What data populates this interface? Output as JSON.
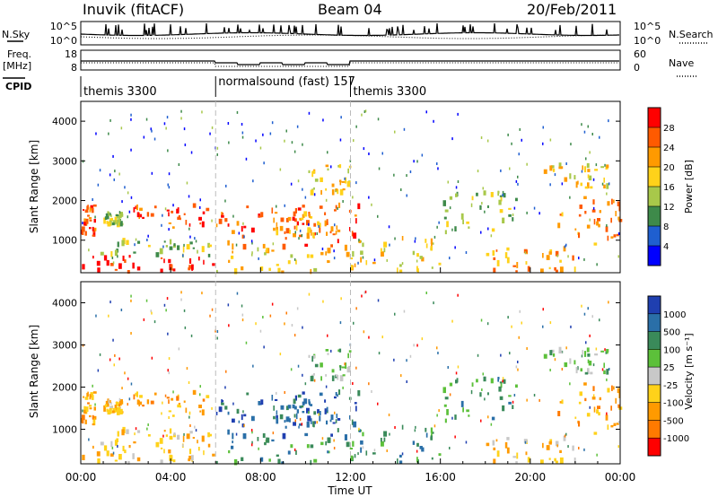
{
  "header": {
    "station": "Inuvik (fitACF)",
    "beam": "Beam 04",
    "date": "20/Feb/2011"
  },
  "nsky_panel": {
    "left_label": "N.Sky",
    "right_label": "N.Search",
    "left_ticks": [
      "10^5",
      "10^0"
    ],
    "right_ticks": [
      "10^5",
      "10^0"
    ]
  },
  "freq_panel": {
    "left_label_1": "Freq.",
    "left_label_2": "[MHz]",
    "right_label": "Nave",
    "left_ticks": [
      "18",
      "8"
    ],
    "right_ticks": [
      "60",
      "0"
    ]
  },
  "cpid": {
    "label": "CPID",
    "segments": [
      {
        "name": "themis 3300",
        "start": 0,
        "end": 6
      },
      {
        "name": "normalsound (fast) 157",
        "start": 6,
        "end": 12
      },
      {
        "name": "themis 3300",
        "start": 12,
        "end": 24
      }
    ]
  },
  "power_panel": {
    "ylabel": "Slant Range [km]",
    "yticks": [
      "1000",
      "2000",
      "3000",
      "4000"
    ],
    "colorbar_label": "Power [dB]",
    "colorbar_ticks": [
      "4",
      "8",
      "12",
      "16",
      "20",
      "24",
      "28"
    ],
    "colors": [
      "#0000ff",
      "#1f5fd0",
      "#3e8a4a",
      "#a8c84a",
      "#ffd21a",
      "#ff9a00",
      "#ff5a00",
      "#ff0000"
    ]
  },
  "velocity_panel": {
    "ylabel": "Slant Range [km]",
    "yticks": [
      "1000",
      "2000",
      "3000",
      "4000"
    ],
    "colorbar_label": "Velocity [m s⁻¹]",
    "colorbar_ticks": [
      "1000",
      "500",
      "100",
      "25",
      "-25",
      "-100",
      "-500",
      "-1000"
    ],
    "colors": [
      "#1f3fb0",
      "#2a6fa8",
      "#3a8a5a",
      "#5cc03a",
      "#c8c8c8",
      "#ffd21a",
      "#ff9a00",
      "#ff7a00",
      "#ff0000"
    ]
  },
  "xaxis": {
    "ticks": [
      "00:00",
      "04:00",
      "08:00",
      "12:00",
      "16:00",
      "20:00",
      "00:00"
    ],
    "label": "Time UT"
  },
  "chart_data": {
    "type": "heatmap",
    "x_range_hours": [
      0,
      24
    ],
    "y_range_km": [
      180,
      4500
    ],
    "mode_change_hours": [
      6,
      12
    ],
    "echo_regions": [
      {
        "t": [
          0.0,
          6.0
        ],
        "r": [
          200,
          600
        ],
        "power_db": 28,
        "velocity": -100
      },
      {
        "t": [
          0.2,
          5.8
        ],
        "r": [
          600,
          1000
        ],
        "power_db": 12,
        "velocity": -100
      },
      {
        "t": [
          0.0,
          0.6
        ],
        "r": [
          1100,
          1900
        ],
        "power_db": 24,
        "velocity": -500
      },
      {
        "t": [
          1.0,
          1.8
        ],
        "r": [
          1400,
          1700
        ],
        "power_db": 12,
        "velocity": -100
      },
      {
        "t": [
          2.2,
          5.8
        ],
        "r": [
          1300,
          1900
        ],
        "power_db": 26,
        "velocity": -500
      },
      {
        "t": [
          6.0,
          12.5
        ],
        "r": [
          800,
          1900
        ],
        "power_db": 24,
        "velocity": 500
      },
      {
        "t": [
          6.0,
          12.0
        ],
        "r": [
          200,
          800
        ],
        "power_db": 16,
        "velocity": 100
      },
      {
        "t": [
          10.0,
          12.0
        ],
        "r": [
          2200,
          2900
        ],
        "power_db": 16,
        "velocity": 25
      },
      {
        "t": [
          8.5,
          11.0
        ],
        "r": [
          1100,
          1700
        ],
        "power_db": 20,
        "velocity": 500
      },
      {
        "t": [
          12.0,
          16.0
        ],
        "r": [
          200,
          1100
        ],
        "power_db": 16,
        "velocity": 100
      },
      {
        "t": [
          16.0,
          19.5
        ],
        "r": [
          1200,
          2200
        ],
        "power_db": 12,
        "velocity": 100
      },
      {
        "t": [
          18.0,
          22.0
        ],
        "r": [
          200,
          800
        ],
        "power_db": 20,
        "velocity": -100
      },
      {
        "t": [
          21.0,
          24.0
        ],
        "r": [
          900,
          2100
        ],
        "power_db": 20,
        "velocity": -500
      },
      {
        "t": [
          20.5,
          23.5
        ],
        "r": [
          2300,
          2900
        ],
        "power_db": 16,
        "velocity": 25
      }
    ]
  }
}
